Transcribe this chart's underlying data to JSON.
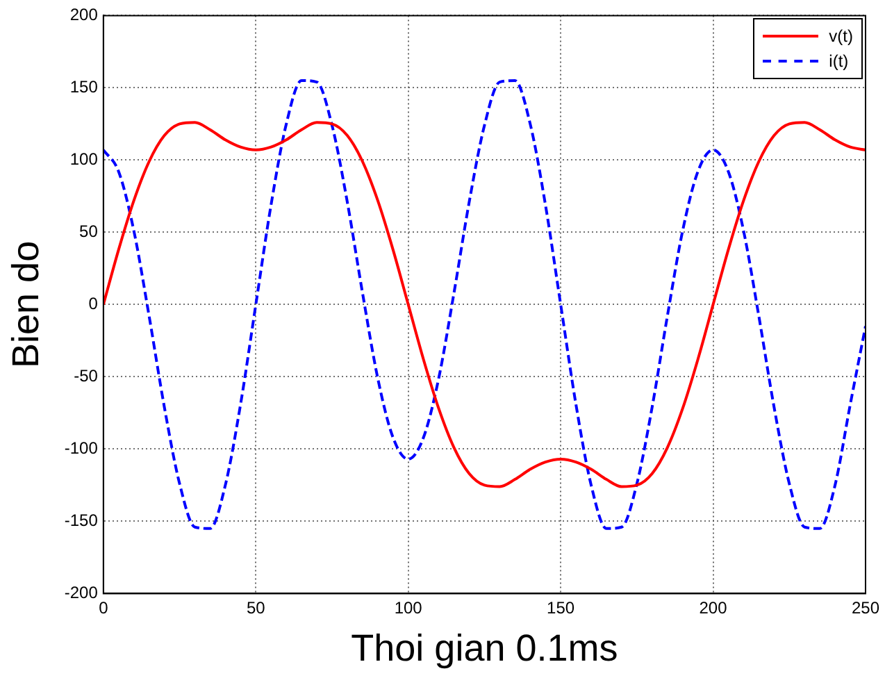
{
  "chart_data": {
    "type": "line",
    "xlabel": "Thoi gian 0.1ms",
    "ylabel": "Bien do",
    "x": [
      0,
      5,
      10,
      15,
      20,
      25,
      30,
      35,
      40,
      45,
      50,
      55,
      60,
      65,
      70,
      75,
      80,
      85,
      90,
      95,
      100,
      105,
      110,
      115,
      120,
      125,
      130,
      135,
      140,
      145,
      150,
      155,
      160,
      165,
      170,
      175,
      180,
      185,
      190,
      195,
      200,
      205,
      210,
      215,
      220,
      225,
      230,
      235,
      240,
      245,
      250
    ],
    "series": [
      {
        "name": "v(t)",
        "color": "#ff0000",
        "line_style": "solid",
        "values": [
          0,
          38,
          72,
          99,
          117,
          125,
          126,
          121,
          114,
          109,
          107,
          109,
          114,
          121,
          126,
          125,
          117,
          99,
          72,
          38,
          0,
          -38,
          -72,
          -99,
          -117,
          -125,
          -126,
          -121,
          -114,
          -109,
          -107,
          -109,
          -114,
          -121,
          -126,
          -125,
          -117,
          -99,
          -72,
          -38,
          0,
          38,
          72,
          99,
          117,
          125,
          126,
          121,
          114,
          109,
          107
        ]
      },
      {
        "name": "i(t)",
        "color": "#0000ff",
        "line_style": "dashed",
        "values": [
          107,
          92,
          51,
          -8,
          -71,
          -124,
          -154,
          -155,
          -125,
          -69,
          0,
          69,
          125,
          155,
          154,
          124,
          71,
          8,
          -51,
          -92,
          -107,
          -92,
          -51,
          8,
          71,
          124,
          154,
          155,
          125,
          69,
          0,
          -69,
          -125,
          -155,
          -154,
          -124,
          -71,
          -8,
          51,
          92,
          107,
          92,
          51,
          -8,
          -71,
          -124,
          -154,
          -155,
          -125,
          -69,
          -15
        ]
      }
    ],
    "xlim": [
      0,
      250
    ],
    "xticks": [
      0,
      50,
      100,
      150,
      200,
      250
    ],
    "ylim": [
      -200,
      200
    ],
    "yticks": [
      -200,
      -150,
      -100,
      -50,
      0,
      50,
      100,
      150,
      200
    ],
    "grid": true,
    "legend": "top right",
    "marker": "none"
  }
}
